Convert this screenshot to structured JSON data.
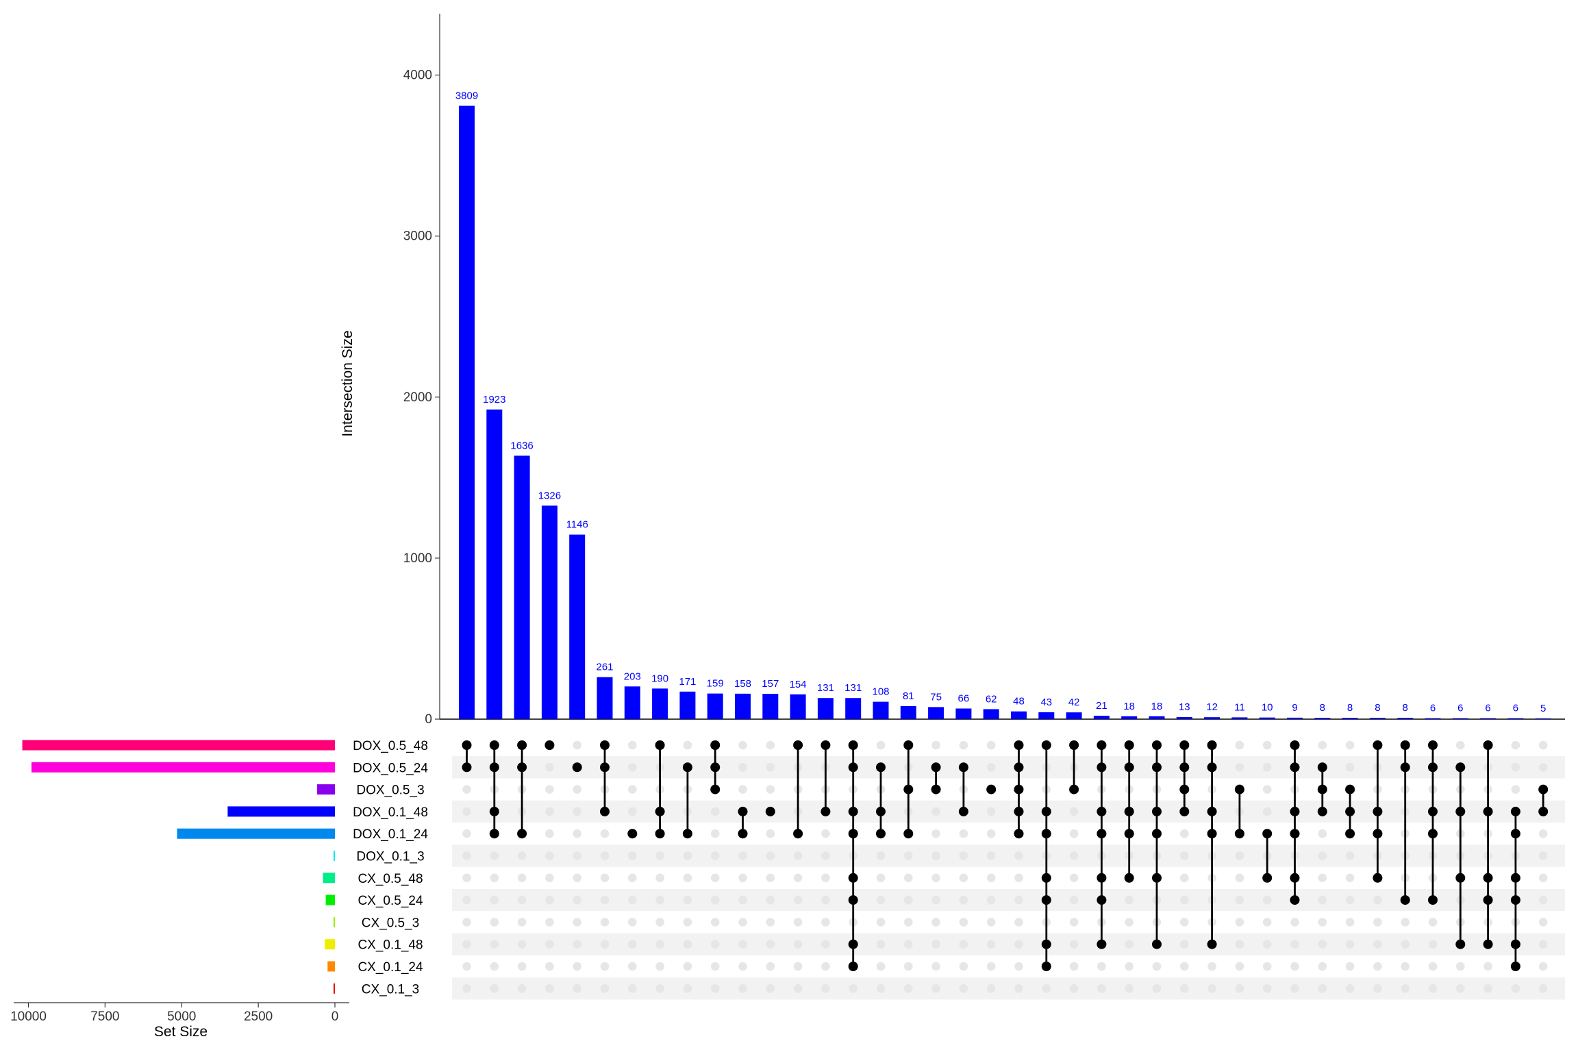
{
  "chart_data": {
    "type": "bar",
    "subtype": "upset",
    "ylabel": "Intersection Size",
    "xlabel_sets": "Set Size",
    "ylim": [
      0,
      4400
    ],
    "yticks": [
      0,
      1000,
      2000,
      3000,
      4000
    ],
    "set_size_xlim": [
      10000,
      0
    ],
    "set_size_ticks": [
      10000,
      7500,
      5000,
      2500,
      0
    ],
    "bar_color": "#0000ff",
    "label_color": "#0000ff",
    "dot_active_color": "#000000",
    "dot_inactive_color": "#e6e6e6",
    "sets": [
      {
        "name": "DOX_0.5_48",
        "size": 10200,
        "color": "#ff0077"
      },
      {
        "name": "DOX_0.5_24",
        "size": 9900,
        "color": "#ff00dd"
      },
      {
        "name": "DOX_0.5_3",
        "size": 580,
        "color": "#8800ee"
      },
      {
        "name": "DOX_0.1_48",
        "size": 3500,
        "color": "#0000ff"
      },
      {
        "name": "DOX_0.1_24",
        "size": 5150,
        "color": "#0088ee"
      },
      {
        "name": "DOX_0.1_3",
        "size": 40,
        "color": "#00eeee"
      },
      {
        "name": "CX_0.5_48",
        "size": 390,
        "color": "#00ee88"
      },
      {
        "name": "CX_0.5_24",
        "size": 300,
        "color": "#00ee00"
      },
      {
        "name": "CX_0.5_3",
        "size": 40,
        "color": "#99ee00"
      },
      {
        "name": "CX_0.1_48",
        "size": 330,
        "color": "#eeee00"
      },
      {
        "name": "CX_0.1_24",
        "size": 240,
        "color": "#ff8800"
      },
      {
        "name": "CX_0.1_3",
        "size": 30,
        "color": "#ee0000"
      }
    ],
    "intersections": [
      {
        "value": 3809,
        "label": "3809",
        "sets": [
          0,
          1
        ]
      },
      {
        "value": 1923,
        "label": "1923",
        "sets": [
          0,
          1,
          3,
          4
        ]
      },
      {
        "value": 1636,
        "label": "1636",
        "sets": [
          0,
          1,
          4
        ]
      },
      {
        "value": 1326,
        "label": "1326",
        "sets": [
          0
        ]
      },
      {
        "value": 1146,
        "label": "1146",
        "sets": [
          1
        ]
      },
      {
        "value": 261,
        "label": "261",
        "sets": [
          0,
          1,
          3
        ]
      },
      {
        "value": 203,
        "label": "203",
        "sets": [
          4
        ]
      },
      {
        "value": 190,
        "label": "190",
        "sets": [
          0,
          3,
          4
        ]
      },
      {
        "value": 171,
        "label": "171",
        "sets": [
          1,
          4
        ]
      },
      {
        "value": 159,
        "label": "159",
        "sets": [
          0,
          1,
          2
        ]
      },
      {
        "value": 158,
        "label": "158",
        "sets": [
          3,
          4
        ]
      },
      {
        "value": 157,
        "label": "157",
        "sets": [
          3
        ]
      },
      {
        "value": 154,
        "label": "154",
        "sets": [
          0,
          4
        ]
      },
      {
        "value": 131,
        "label": "131",
        "sets": [
          0,
          3
        ]
      },
      {
        "value": 131,
        "label": "131",
        "sets": [
          0,
          1,
          3,
          4,
          6,
          7,
          9,
          10
        ]
      },
      {
        "value": 108,
        "label": "108",
        "sets": [
          1,
          3,
          4
        ]
      },
      {
        "value": 81,
        "label": "81",
        "sets": [
          0,
          2,
          4
        ]
      },
      {
        "value": 75,
        "label": "75",
        "sets": [
          1,
          2
        ]
      },
      {
        "value": 66,
        "label": "66",
        "sets": [
          1,
          3
        ]
      },
      {
        "value": 62,
        "label": "62",
        "sets": [
          2
        ]
      },
      {
        "value": 48,
        "label": "48",
        "sets": [
          0,
          1,
          2,
          3,
          4
        ]
      },
      {
        "value": 43,
        "label": "43",
        "sets": [
          0,
          3,
          4,
          6,
          7,
          9,
          10
        ]
      },
      {
        "value": 42,
        "label": "42",
        "sets": [
          0,
          2
        ]
      },
      {
        "value": 21,
        "label": "21",
        "sets": [
          0,
          1,
          3,
          4,
          6,
          7,
          9
        ]
      },
      {
        "value": 18,
        "label": "18",
        "sets": [
          0,
          1,
          3,
          4,
          6
        ]
      },
      {
        "value": 18,
        "label": "18",
        "sets": [
          0,
          1,
          3,
          4,
          6,
          9
        ]
      },
      {
        "value": 13,
        "label": "13",
        "sets": [
          0,
          1,
          2,
          3
        ]
      },
      {
        "value": 12,
        "label": "12",
        "sets": [
          0,
          1,
          3,
          4,
          9
        ]
      },
      {
        "value": 11,
        "label": "11",
        "sets": [
          2,
          4
        ]
      },
      {
        "value": 10,
        "label": "10",
        "sets": [
          4,
          6
        ]
      },
      {
        "value": 9,
        "label": "9",
        "sets": [
          0,
          1,
          3,
          4,
          6,
          7
        ]
      },
      {
        "value": 8,
        "label": "8",
        "sets": [
          1,
          2,
          3
        ]
      },
      {
        "value": 8,
        "label": "8",
        "sets": [
          2,
          3,
          4
        ]
      },
      {
        "value": 8,
        "label": "8",
        "sets": [
          0,
          3,
          4,
          6
        ]
      },
      {
        "value": 8,
        "label": "8",
        "sets": [
          0,
          1,
          7
        ]
      },
      {
        "value": 6,
        "label": "6",
        "sets": [
          0,
          1,
          3,
          4,
          7
        ]
      },
      {
        "value": 6,
        "label": "6",
        "sets": [
          1,
          3,
          6,
          9
        ]
      },
      {
        "value": 6,
        "label": "6",
        "sets": [
          0,
          3,
          6,
          7,
          9
        ]
      },
      {
        "value": 6,
        "label": "6",
        "sets": [
          3,
          4,
          6,
          7,
          9,
          10
        ]
      },
      {
        "value": 5,
        "label": "5",
        "sets": [
          2,
          3
        ]
      }
    ]
  }
}
